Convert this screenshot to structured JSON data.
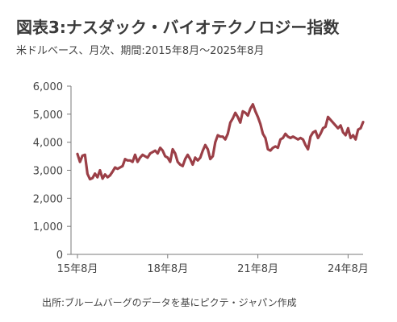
{
  "header": {
    "title": "図表3:ナスダック・バイオテクノロジー指数",
    "subtitle": "米ドルベース、月次、期間:2015年8月〜2025年8月"
  },
  "footer": {
    "source": "出所:ブルームバーグのデータを基にピクテ・ジャパン作成"
  },
  "colors": {
    "line": "#9b3f47",
    "axis": "#7a7a7a"
  },
  "chart_data": {
    "type": "line",
    "title": "図表3:ナスダック・バイオテクノロジー指数",
    "subtitle": "米ドルベース、月次、期間:2015年8月〜2025年8月",
    "xlabel": "",
    "ylabel": "",
    "ylim": [
      0,
      6000
    ],
    "yticks": [
      0,
      1000,
      2000,
      3000,
      4000,
      5000,
      6000
    ],
    "ytick_labels": [
      "0",
      "1,000",
      "2,000",
      "3,000",
      "4,000",
      "5,000",
      "6,000"
    ],
    "xticks": [
      {
        "label": "15年8月",
        "index": 0
      },
      {
        "label": "18年8月",
        "index": 36
      },
      {
        "label": "21年8月",
        "index": 72
      },
      {
        "label": "24年8月",
        "index": 108
      }
    ],
    "grid": false,
    "series": [
      {
        "values": [
          3580,
          3300,
          3520,
          3550,
          2870,
          2680,
          2720,
          2880,
          2750,
          3000,
          2700,
          2850,
          2750,
          2820,
          2950,
          3100,
          3050,
          3100,
          3150,
          3400,
          3350,
          3350,
          3300,
          3550,
          3300,
          3450,
          3550,
          3500,
          3450,
          3600,
          3650,
          3700,
          3600,
          3800,
          3700,
          3500,
          3450,
          3300,
          3750,
          3600,
          3300,
          3200,
          3150,
          3400,
          3550,
          3400,
          3200,
          3450,
          3350,
          3450,
          3700,
          3900,
          3750,
          3400,
          3500,
          4000,
          4250,
          4200,
          4200,
          4100,
          4300,
          4700,
          4850,
          5050,
          4900,
          4700,
          5100,
          5050,
          4950,
          5200,
          5350,
          5100,
          4900,
          4650,
          4300,
          4150,
          3750,
          3700,
          3800,
          3850,
          3800,
          4100,
          4150,
          4300,
          4200,
          4150,
          4200,
          4150,
          4100,
          4150,
          4100,
          3900,
          3750,
          4200,
          4350,
          4400,
          4150,
          4300,
          4500,
          4550,
          4900,
          4800,
          4700,
          4600,
          4500,
          4600,
          4350,
          4250,
          4500,
          4150,
          4250,
          4100,
          4450,
          4500,
          4720
        ]
      }
    ]
  }
}
